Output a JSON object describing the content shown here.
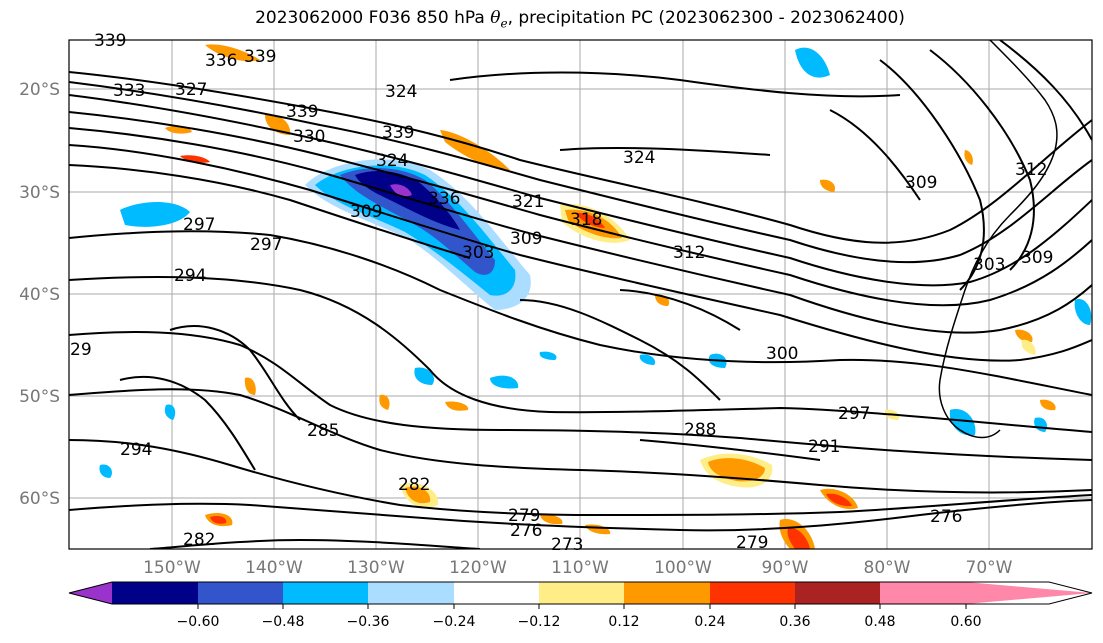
{
  "title": {
    "prefix": "2023062000 F036 850 hPa ",
    "theta": "θ",
    "sub": "e",
    "suffix": ", precipitation PC (2023062300 - 2023062400)"
  },
  "map": {
    "lat_labels": [
      "20°S",
      "30°S",
      "40°S",
      "50°S",
      "60°S"
    ],
    "lon_labels": [
      "150°W",
      "140°W",
      "130°W",
      "120°W",
      "110°W",
      "100°W",
      "90°W",
      "80°W",
      "70°W"
    ],
    "contour_labels": [
      "339",
      "336",
      "339",
      "333",
      "327",
      "339",
      "330",
      "324",
      "339",
      "324",
      "336",
      "318",
      "321",
      "309",
      "297",
      "297",
      "294",
      "309",
      "312",
      "303",
      "324",
      "309",
      "303",
      "309",
      "312",
      "300",
      "297",
      "291",
      "288",
      "294",
      "285",
      "282",
      "279",
      "276",
      "273",
      "279",
      "276",
      "282",
      "29"
    ]
  },
  "colorbar": {
    "ticks": [
      "−0.60",
      "−0.48",
      "−0.36",
      "−0.24",
      "−0.12",
      "0.12",
      "0.24",
      "0.36",
      "0.48",
      "0.60"
    ],
    "colors": [
      "#9933cc",
      "#000088",
      "#3355cc",
      "#00bbff",
      "#aaddff",
      "#ffffff",
      "#ffee88",
      "#ff9900",
      "#ff3300",
      "#aa2222",
      "#ff88aa"
    ]
  }
}
